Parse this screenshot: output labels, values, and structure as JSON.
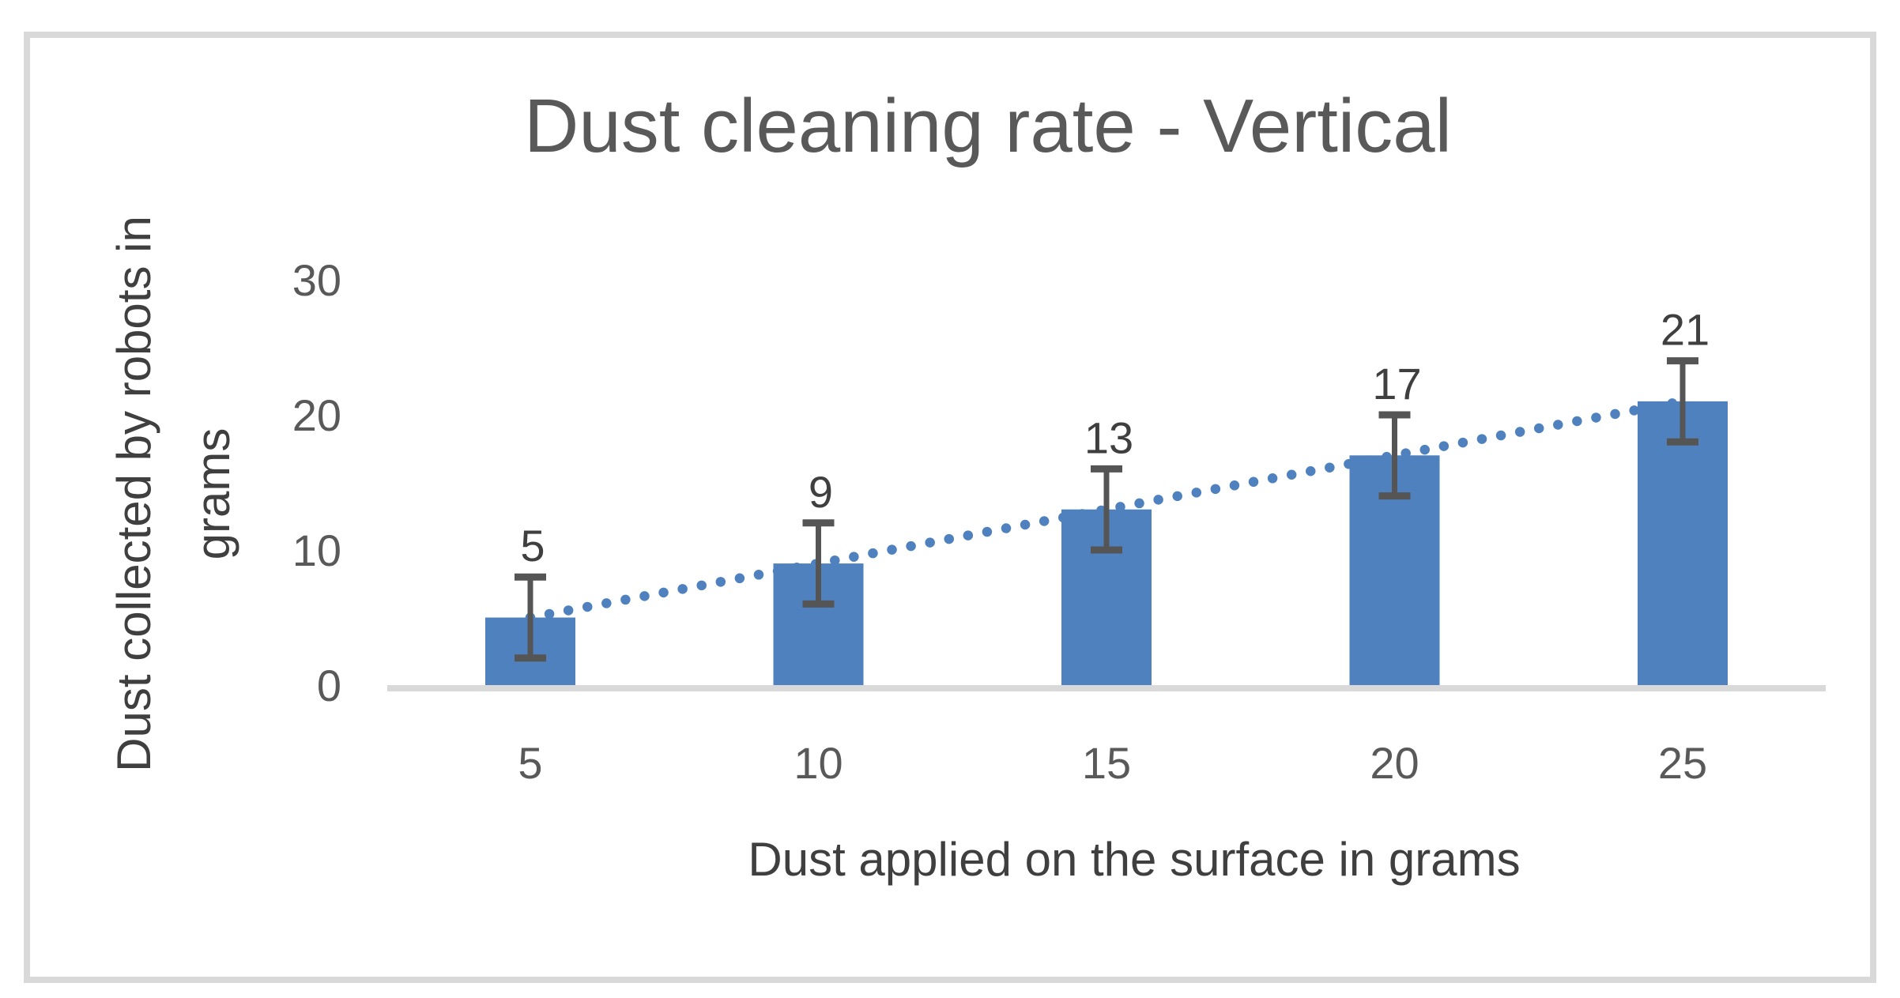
{
  "chart_data": {
    "type": "bar",
    "title": "Dust cleaning rate - Vertical",
    "xlabel": "Dust applied on the surface in grams",
    "ylabel": "Dust collected by robots in grams",
    "ylabel_lines": [
      "Dust collected by robots in",
      "grams"
    ],
    "categories": [
      5,
      10,
      15,
      20,
      25
    ],
    "values": [
      5,
      9,
      13,
      17,
      21
    ],
    "data_labels": [
      "5",
      "9",
      "13",
      "17",
      "21"
    ],
    "error_bars": {
      "plus": 3,
      "minus": 3
    },
    "trendline": {
      "type": "linear",
      "style": "dotted",
      "x_endpoints": [
        5,
        25
      ],
      "y_endpoints": [
        5,
        21
      ]
    },
    "yticks": [
      0,
      10,
      20,
      30
    ],
    "ylim": [
      0,
      30
    ],
    "grid": false,
    "legend": false,
    "colors": {
      "bar": "#4E81BD",
      "trendline": "#4E81BD",
      "title": "#595959",
      "tick_labels": "#595959",
      "axis_titles": "#3F3F3F",
      "data_labels": "#3F3F3F",
      "error_bar": "#555555",
      "axis_line": "#D9D9D9",
      "frame_border": "#D9D9D9",
      "background": "#FFFFFF"
    }
  }
}
